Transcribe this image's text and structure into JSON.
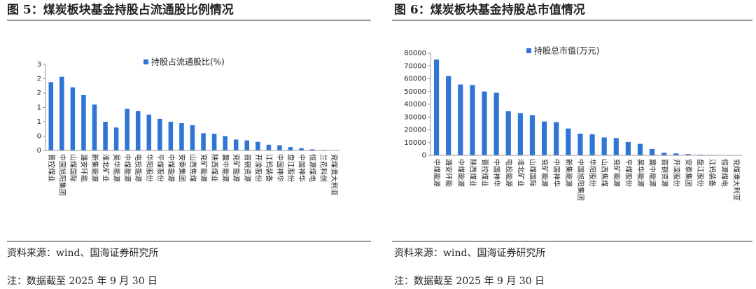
{
  "chart_data": [
    {
      "type": "bar",
      "title": "图 5：煤炭板块基金持股占流通股比例情况",
      "categories": [
        "晋控煤业",
        "中国旭阳集团",
        "山煤国际",
        "潞安环能",
        "新集能源",
        "淮北矿业",
        "昊华能源",
        "中煤能源",
        "电投能源",
        "华阳股份",
        "平煤股份",
        "中煤能源",
        "安泰集团",
        "山西焦煤",
        "兖矿能源",
        "陕西煤业",
        "冀中能源",
        "兖矿能源",
        "首钢资源",
        "开滦股份",
        "江钨装备",
        "中国神华",
        "盘江股份",
        "中国神华",
        "恒源煤电",
        "兰花科创",
        "兖煤澳大利亚"
      ],
      "series": [
        {
          "name": "持股占流通股比(%)",
          "color": "#2e75d6",
          "values": [
            2.38,
            2.57,
            2.2,
            1.93,
            1.6,
            1.0,
            0.8,
            1.45,
            1.37,
            1.25,
            1.1,
            1.0,
            0.95,
            0.88,
            0.6,
            0.58,
            0.5,
            0.38,
            0.35,
            0.3,
            0.2,
            0.18,
            0.12,
            0.08,
            0.04,
            0.02,
            0.01
          ]
        }
      ],
      "ylim": [
        0,
        3
      ],
      "yticks": [
        0,
        {
          "value": 0.5,
          "label": "0"
        },
        1,
        {
          "value": 1.5,
          "label": "1"
        },
        2,
        {
          "value": 2.5,
          "label": "2"
        },
        3
      ],
      "source": "资料来源：wind、国海证券研究所",
      "note": "注：数据截至 2025 年 9 月 30 日"
    },
    {
      "type": "bar",
      "title": "图 6：煤炭板块基金持股总市值情况",
      "categories": [
        "中煤能源",
        "潞安环能",
        "中煤能源",
        "陕西煤业",
        "晋控煤业",
        "中国神华",
        "电投能源",
        "淮北矿业",
        "山煤国际",
        "兖矿能源",
        "中国神华",
        "新集能源",
        "中国旭阳集团",
        "华阳股份",
        "山西焦煤",
        "兖矿能源",
        "平煤股份",
        "昊华能源",
        "冀中能源",
        "首钢资源",
        "开滦股份",
        "安泰集团",
        "盘江股份",
        "江钨装备",
        "恒源煤电",
        "兖煤澳大利亚"
      ],
      "series": [
        {
          "name": "持股总市值(万元)",
          "color": "#2e75d6",
          "values": [
            75000,
            62000,
            55500,
            55000,
            50000,
            49000,
            34500,
            33000,
            31500,
            26500,
            26000,
            21000,
            17000,
            16500,
            14000,
            13500,
            10500,
            9000,
            5000,
            2000,
            1500,
            1000,
            500,
            300,
            100,
            50
          ]
        }
      ],
      "ylim": [
        0,
        80000
      ],
      "yticks": [
        0,
        10000,
        20000,
        30000,
        40000,
        50000,
        60000,
        70000,
        80000
      ],
      "source": "资料来源：wind、国海证券研究所",
      "note": "注：数据截至 2025 年 9 月 30 日"
    }
  ]
}
